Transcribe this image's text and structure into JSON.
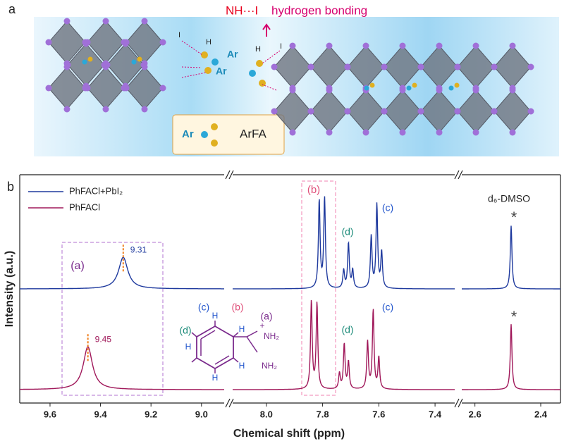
{
  "illustration": {
    "panel_label": "a",
    "title_nh": "NH···I",
    "title_rest": "hydrogen bonding",
    "labels": [
      "I",
      "H",
      "Ar",
      "Ar",
      "H",
      "I"
    ],
    "legend_ar": "Ar",
    "legend_name": "ArFA"
  },
  "chart_data": {
    "type": "line",
    "panel_label": "b",
    "x_label": "Chemical shift (ppm)",
    "y_label": "Intensity (a.u.)",
    "x_segments": [
      {
        "xlim": [
          9.72,
          8.91
        ],
        "xticks": [
          9.6,
          9.4,
          9.2,
          {
            "value": 9,
            "label": "9.0"
          }
        ]
      },
      {
        "xlim": [
          8.12,
          7.33
        ],
        "xticks": [
          {
            "value": 8,
            "label": "8.0"
          },
          7.8,
          7.6,
          7.4
        ]
      },
      {
        "xlim": [
          2.64,
          2.34
        ],
        "xticks": [
          2.6,
          2.4
        ]
      }
    ],
    "series": [
      {
        "name": "PhFACl+PbI₂",
        "color": "#1f3a9e",
        "peaks": [
          {
            "x": 9.31,
            "height": 14,
            "hwhm": 0.022
          },
          {
            "x": 7.812,
            "height": 39,
            "hwhm": 0.0035
          },
          {
            "x": 7.793,
            "height": 40,
            "hwhm": 0.0035
          },
          {
            "x": 7.725,
            "height": 8,
            "hwhm": 0.0035
          },
          {
            "x": 7.708,
            "height": 20,
            "hwhm": 0.0035
          },
          {
            "x": 7.693,
            "height": 8,
            "hwhm": 0.0035
          },
          {
            "x": 7.627,
            "height": 23,
            "hwhm": 0.0035
          },
          {
            "x": 7.607,
            "height": 37,
            "hwhm": 0.0035
          },
          {
            "x": 7.59,
            "height": 16,
            "hwhm": 0.0035
          },
          {
            "x": 2.49,
            "height": 28,
            "hwhm": 0.003
          }
        ]
      },
      {
        "name": "PhFACl",
        "color": "#a0185a",
        "peaks": [
          {
            "x": 9.45,
            "height": 19,
            "hwhm": 0.022
          },
          {
            "x": 7.84,
            "height": 39,
            "hwhm": 0.0035
          },
          {
            "x": 7.82,
            "height": 38,
            "hwhm": 0.0035
          },
          {
            "x": 7.74,
            "height": 7,
            "hwhm": 0.0035
          },
          {
            "x": 7.723,
            "height": 20,
            "hwhm": 0.0035
          },
          {
            "x": 7.708,
            "height": 12,
            "hwhm": 0.0035
          },
          {
            "x": 7.64,
            "height": 21,
            "hwhm": 0.0035
          },
          {
            "x": 7.62,
            "height": 35,
            "hwhm": 0.0035
          },
          {
            "x": 7.6,
            "height": 14,
            "hwhm": 0.0035
          },
          {
            "x": 2.49,
            "height": 29,
            "hwhm": 0.003
          }
        ]
      }
    ],
    "annotations": [
      {
        "text": "(a)",
        "color": "#7a2a8c"
      },
      {
        "text": "(b)",
        "color": "#e0507a"
      },
      {
        "text": "(c)",
        "color": "#2255cc"
      },
      {
        "text": "(d)",
        "color": "#1a8a78"
      },
      {
        "text": "(c)",
        "color": "#2255cc"
      },
      {
        "text": "(d)",
        "color": "#1a8a78"
      },
      {
        "text": "d₆-DMSO",
        "color": "#222222"
      },
      {
        "text": "*",
        "color": "#444444"
      },
      {
        "text": "*",
        "color": "#444444"
      }
    ],
    "structure": [
      {
        "text": "(c)",
        "color": "#2255cc"
      },
      {
        "text": "(b)",
        "color": "#e0507a"
      },
      {
        "text": "(a)",
        "color": "#7a2a8c"
      },
      {
        "text": "(d)",
        "color": "#1a8a78"
      },
      {
        "text": "H",
        "color": "#2255cc"
      },
      {
        "text": "H",
        "color": "#2255cc"
      },
      {
        "text": "H",
        "color": "#2255cc"
      },
      {
        "text": "H",
        "color": "#2255cc"
      },
      {
        "text": "H",
        "color": "#2255cc"
      },
      {
        "text": "NH₂",
        "color": "#7a2a8c"
      },
      {
        "text": "NH₂",
        "color": "#7a2a8c"
      },
      {
        "text": "+",
        "color": "#7a2a8c"
      }
    ]
  }
}
